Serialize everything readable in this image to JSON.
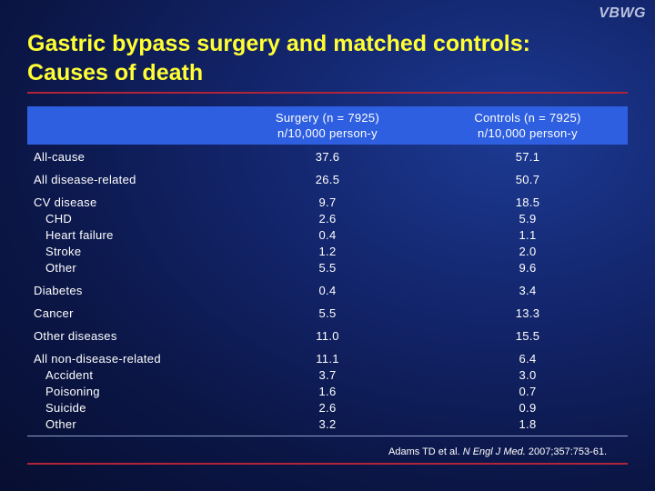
{
  "logo": "VBWG",
  "title": {
    "line1": "Gastric bypass surgery and matched controls:",
    "line2": "Causes of death"
  },
  "table": {
    "headers": {
      "surgery_line1": "Surgery (n = 7925)",
      "surgery_line2": "n/10,000 person-y",
      "controls_line1": "Controls (n = 7925)",
      "controls_line2": "n/10,000 person-y"
    },
    "rows": [
      {
        "label": "All-cause",
        "surgery": "37.6",
        "controls": "57.1"
      },
      {
        "label": "All disease-related",
        "surgery": "26.5",
        "controls": "50.7"
      },
      {
        "label": "CV disease",
        "surgery": "9.7",
        "controls": "18.5"
      },
      {
        "label": "CHD",
        "surgery": "2.6",
        "controls": "5.9"
      },
      {
        "label": "Heart failure",
        "surgery": "0.4",
        "controls": "1.1"
      },
      {
        "label": "Stroke",
        "surgery": "1.2",
        "controls": "2.0"
      },
      {
        "label": "Other",
        "surgery": "5.5",
        "controls": "9.6"
      },
      {
        "label": "Diabetes",
        "surgery": "0.4",
        "controls": "3.4"
      },
      {
        "label": "Cancer",
        "surgery": "5.5",
        "controls": "13.3"
      },
      {
        "label": "Other diseases",
        "surgery": "11.0",
        "controls": "15.5"
      },
      {
        "label": "All non-disease-related",
        "surgery": "11.1",
        "controls": "6.4"
      },
      {
        "label": "Accident",
        "surgery": "3.7",
        "controls": "3.0"
      },
      {
        "label": "Poisoning",
        "surgery": "1.6",
        "controls": "0.7"
      },
      {
        "label": "Suicide",
        "surgery": "2.6",
        "controls": "0.9"
      },
      {
        "label": "Other",
        "surgery": "3.2",
        "controls": "1.8"
      }
    ]
  },
  "reference": {
    "authors": "Adams TD et al. ",
    "journal": "N Engl J Med.",
    "citation": " 2007;357:753-61."
  }
}
